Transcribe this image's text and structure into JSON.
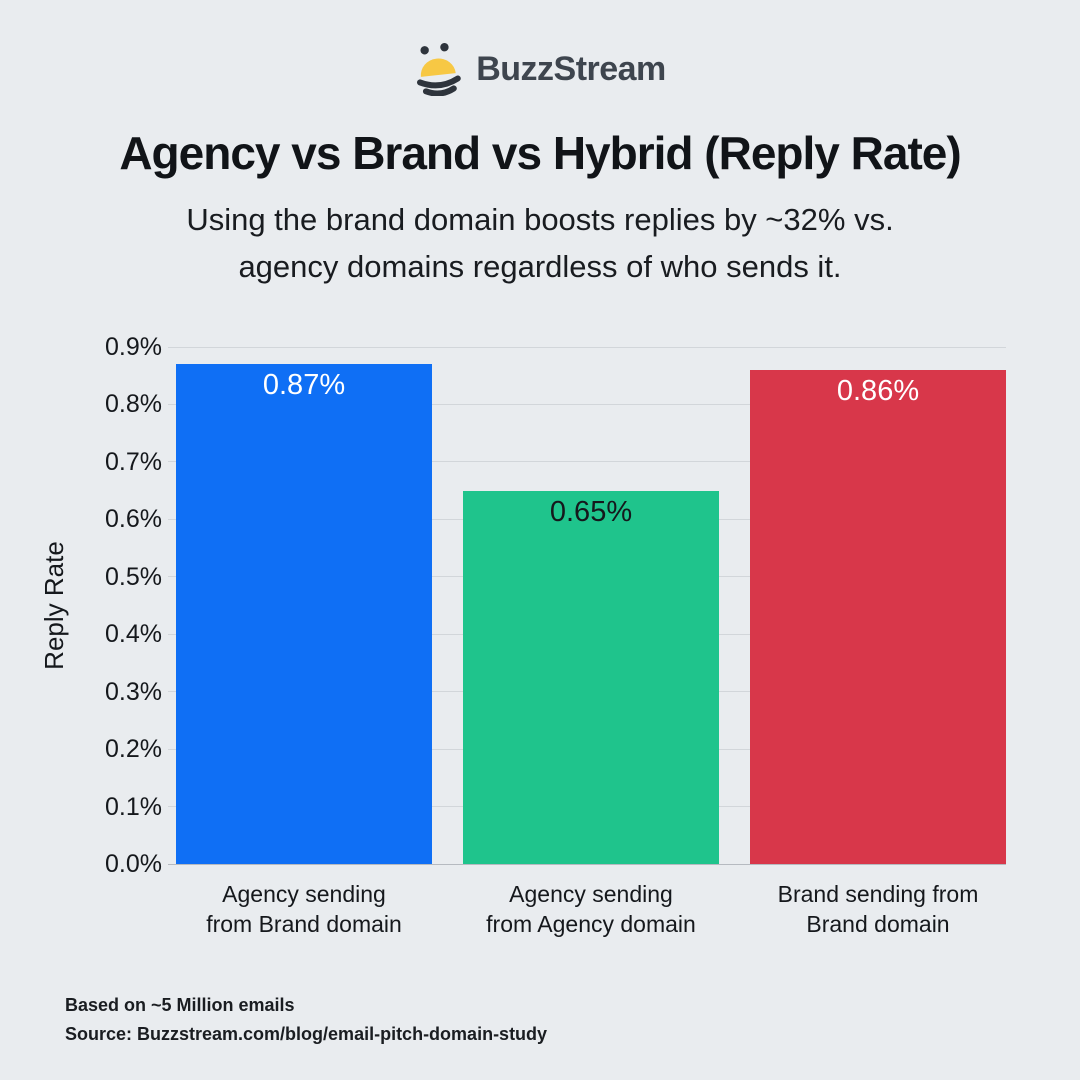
{
  "colors": {
    "background": "#e9ecef",
    "grid": "#d2d6da",
    "baseline": "#b6bac0",
    "text_primary": "#15181c",
    "logo_text": "#3e454e",
    "bee_yellow": "#f7c844",
    "bee_dark": "#2e343c"
  },
  "logo": {
    "icon": "bee-icon",
    "brand": "BuzzStream"
  },
  "header": {
    "title": "Agency vs Brand vs Hybrid (Reply Rate)",
    "subtitle": "Using the brand domain boosts replies by ~32% vs.\nagency domains regardless of who sends it."
  },
  "chart_data": {
    "type": "bar",
    "title": "Agency vs Brand vs Hybrid (Reply Rate)",
    "xlabel": "",
    "ylabel": "Reply Rate",
    "unit": "%",
    "ylim": [
      0,
      0.9
    ],
    "grid": true,
    "legend": false,
    "yticks": [
      {
        "value": 0.0,
        "label": "0.0%"
      },
      {
        "value": 0.1,
        "label": "0.1%"
      },
      {
        "value": 0.2,
        "label": "0.2%"
      },
      {
        "value": 0.3,
        "label": "0.3%"
      },
      {
        "value": 0.4,
        "label": "0.4%"
      },
      {
        "value": 0.5,
        "label": "0.5%"
      },
      {
        "value": 0.6,
        "label": "0.6%"
      },
      {
        "value": 0.7,
        "label": "0.7%"
      },
      {
        "value": 0.8,
        "label": "0.8%"
      },
      {
        "value": 0.9,
        "label": "0.9%"
      }
    ],
    "categories": [
      "Agency sending\nfrom Brand domain",
      "Agency sending\nfrom Agency domain",
      "Brand sending from\nBrand domain"
    ],
    "values": [
      0.87,
      0.65,
      0.86
    ],
    "bar_labels": [
      "0.87%",
      "0.65%",
      "0.86%"
    ],
    "bar_colors": [
      "#0f6ff5",
      "#1fc48c",
      "#d8374a"
    ],
    "bar_label_colors": [
      "#ffffff",
      "#15181c",
      "#ffffff"
    ]
  },
  "footer": {
    "line1": "Based on ~5 Million emails",
    "line2": "Source: Buzzstream.com/blog/email-pitch-domain-study"
  }
}
